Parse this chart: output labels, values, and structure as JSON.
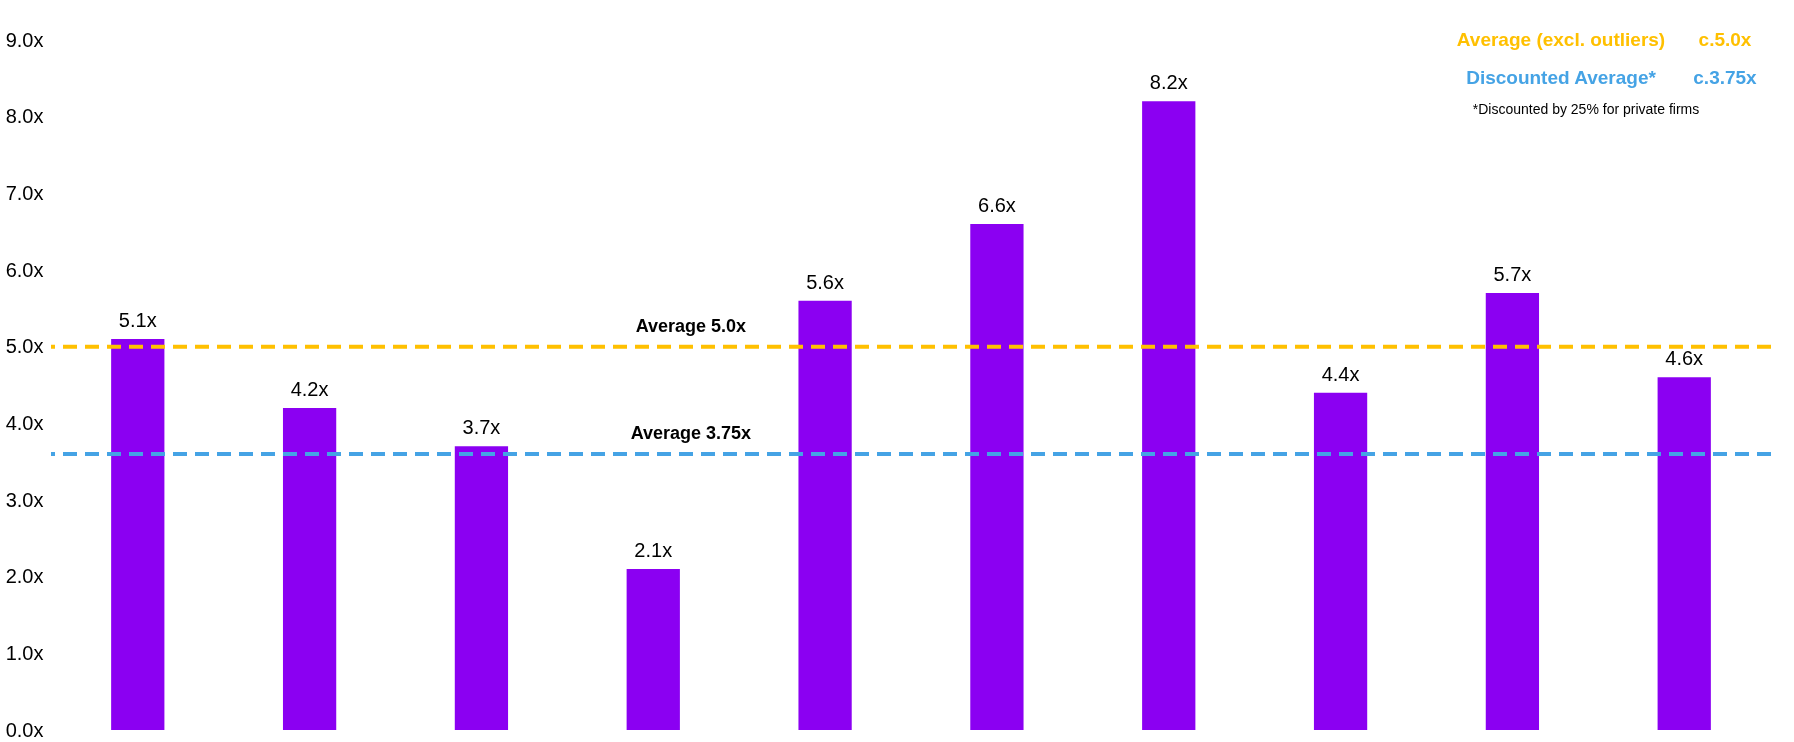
{
  "chart_data": {
    "type": "bar",
    "categories": [
      null,
      null,
      null,
      null,
      null,
      null,
      null,
      null,
      null,
      null
    ],
    "values": [
      5.1,
      4.2,
      3.7,
      2.1,
      5.6,
      6.6,
      8.2,
      4.4,
      5.7,
      4.6
    ],
    "color": "#8b00f2",
    "value_labels": [
      "5.1x",
      "4.2x",
      "3.7x",
      "2.1x",
      "5.6x",
      "6.6x",
      "8.2x",
      "4.4x",
      "5.7x",
      "4.6x"
    ],
    "ylim": [
      0,
      9
    ],
    "yticks": [
      {
        "value": 0,
        "label": "0.0x"
      },
      {
        "value": 1,
        "label": "1.0x"
      },
      {
        "value": 2,
        "label": "2.0x"
      },
      {
        "value": 3,
        "label": "3.0x"
      },
      {
        "value": 4,
        "label": "4.0x"
      },
      {
        "value": 5,
        "label": "5.0x"
      },
      {
        "value": 6,
        "label": "6.0x"
      },
      {
        "value": 7,
        "label": "7.0x"
      },
      {
        "value": 8,
        "label": "8.0x"
      },
      {
        "value": 9,
        "label": "9.0x"
      }
    ],
    "tick_labels": "y",
    "grid": false,
    "ref_lines": [
      {
        "axis": "y",
        "value": 5.0,
        "label": "Average 5.0x",
        "color": "#ffc000",
        "line_style": "dashed"
      },
      {
        "axis": "y",
        "value": 3.6,
        "label": "Average 3.75x",
        "color": "#45a3e5",
        "line_style": "dashed"
      }
    ],
    "annotations": [
      "Average (excl. outliers)",
      "c.5.0x",
      "Discounted Average*",
      "c.3.75x",
      "*Discounted by 25% for private firms"
    ]
  }
}
